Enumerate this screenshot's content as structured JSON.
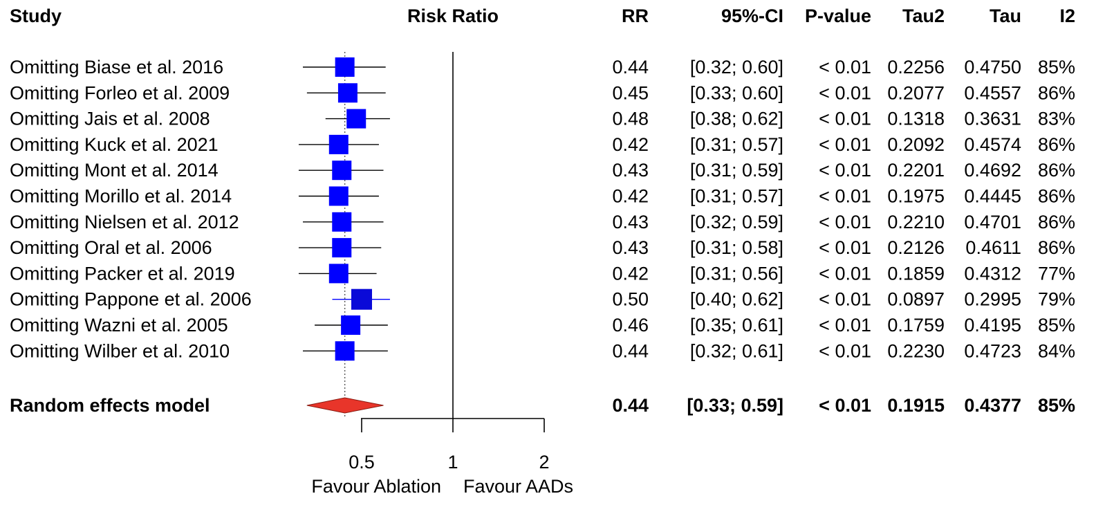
{
  "headers": {
    "study": "Study",
    "plot": "Risk Ratio",
    "rr": "RR",
    "ci": "95%-CI",
    "p": "P-value",
    "tau2": "Tau2",
    "tau": "Tau",
    "i2": "I2"
  },
  "rows": [
    {
      "study": "Omitting Biase et al. 2016",
      "rr": "0.44",
      "ci": "[0.32; 0.60]",
      "p": "< 0.01",
      "tau2": "0.2256",
      "tau": "0.4750",
      "i2": "85%"
    },
    {
      "study": "Omitting Forleo et al. 2009",
      "rr": "0.45",
      "ci": "[0.33; 0.60]",
      "p": "< 0.01",
      "tau2": "0.2077",
      "tau": "0.4557",
      "i2": "86%"
    },
    {
      "study": "Omitting Jais et al. 2008",
      "rr": "0.48",
      "ci": "[0.38; 0.62]",
      "p": "< 0.01",
      "tau2": "0.1318",
      "tau": "0.3631",
      "i2": "83%"
    },
    {
      "study": "Omitting Kuck et al. 2021",
      "rr": "0.42",
      "ci": "[0.31; 0.57]",
      "p": "< 0.01",
      "tau2": "0.2092",
      "tau": "0.4574",
      "i2": "86%"
    },
    {
      "study": "Omitting Mont et al. 2014",
      "rr": "0.43",
      "ci": "[0.31; 0.59]",
      "p": "< 0.01",
      "tau2": "0.2201",
      "tau": "0.4692",
      "i2": "86%"
    },
    {
      "study": "Omitting Morillo et al. 2014",
      "rr": "0.42",
      "ci": "[0.31; 0.57]",
      "p": "< 0.01",
      "tau2": "0.1975",
      "tau": "0.4445",
      "i2": "86%"
    },
    {
      "study": "Omitting Nielsen et al. 2012",
      "rr": "0.43",
      "ci": "[0.32; 0.59]",
      "p": "< 0.01",
      "tau2": "0.2210",
      "tau": "0.4701",
      "i2": "86%"
    },
    {
      "study": "Omitting Oral et al. 2006",
      "rr": "0.43",
      "ci": "[0.31; 0.58]",
      "p": "< 0.01",
      "tau2": "0.2126",
      "tau": "0.4611",
      "i2": "86%"
    },
    {
      "study": "Omitting Packer et al. 2019",
      "rr": "0.42",
      "ci": "[0.31; 0.56]",
      "p": "< 0.01",
      "tau2": "0.1859",
      "tau": "0.4312",
      "i2": "77%"
    },
    {
      "study": "Omitting Pappone et al. 2006",
      "rr": "0.50",
      "ci": "[0.40; 0.62]",
      "p": "< 0.01",
      "tau2": "0.0897",
      "tau": "0.2995",
      "i2": "79%"
    },
    {
      "study": "Omitting Wazni et al. 2005",
      "rr": "0.46",
      "ci": "[0.35; 0.61]",
      "p": "< 0.01",
      "tau2": "0.1759",
      "tau": "0.4195",
      "i2": "85%"
    },
    {
      "study": "Omitting Wilber et al. 2010",
      "rr": "0.44",
      "ci": "[0.32; 0.61]",
      "p": "< 0.01",
      "tau2": "0.2230",
      "tau": "0.4723",
      "i2": "84%"
    }
  ],
  "summary": {
    "label": "Random effects model",
    "rr": "0.44",
    "ci": "[0.33; 0.59]",
    "p": "< 0.01",
    "tau2": "0.1915",
    "tau": "0.4377",
    "i2": "85%"
  },
  "axis": {
    "ticks": [
      "0.5",
      "1",
      "2"
    ],
    "left_label": "Favour Ablation",
    "right_label": "Favour AADs"
  },
  "colors": {
    "square": "#0000ff",
    "diamond": "#e8352a",
    "line": "#000000"
  },
  "chart_data": {
    "type": "forest",
    "title": "Risk Ratio",
    "scale": "log",
    "xlim": [
      0.5,
      2
    ],
    "ticks": [
      0.5,
      1,
      2
    ],
    "reference": 1,
    "xlabel_left": "Favour Ablation",
    "xlabel_right": "Favour AADs",
    "studies": [
      {
        "label": "Omitting Biase et al. 2016",
        "rr": 0.44,
        "lower": 0.32,
        "upper": 0.6
      },
      {
        "label": "Omitting Forleo et al. 2009",
        "rr": 0.45,
        "lower": 0.33,
        "upper": 0.6
      },
      {
        "label": "Omitting Jais et al. 2008",
        "rr": 0.48,
        "lower": 0.38,
        "upper": 0.62
      },
      {
        "label": "Omitting Kuck et al. 2021",
        "rr": 0.42,
        "lower": 0.31,
        "upper": 0.57
      },
      {
        "label": "Omitting Mont et al. 2014",
        "rr": 0.43,
        "lower": 0.31,
        "upper": 0.59
      },
      {
        "label": "Omitting Morillo et al. 2014",
        "rr": 0.42,
        "lower": 0.31,
        "upper": 0.57
      },
      {
        "label": "Omitting Nielsen et al. 2012",
        "rr": 0.43,
        "lower": 0.32,
        "upper": 0.59
      },
      {
        "label": "Omitting Oral et al. 2006",
        "rr": 0.43,
        "lower": 0.31,
        "upper": 0.58
      },
      {
        "label": "Omitting Packer et al. 2019",
        "rr": 0.42,
        "lower": 0.31,
        "upper": 0.56
      },
      {
        "label": "Omitting Pappone et al. 2006",
        "rr": 0.5,
        "lower": 0.4,
        "upper": 0.62
      },
      {
        "label": "Omitting Wazni et al. 2005",
        "rr": 0.46,
        "lower": 0.35,
        "upper": 0.61
      },
      {
        "label": "Omitting Wilber et al. 2010",
        "rr": 0.44,
        "lower": 0.32,
        "upper": 0.61
      }
    ],
    "summary": {
      "label": "Random effects model",
      "rr": 0.44,
      "lower": 0.33,
      "upper": 0.59
    }
  }
}
